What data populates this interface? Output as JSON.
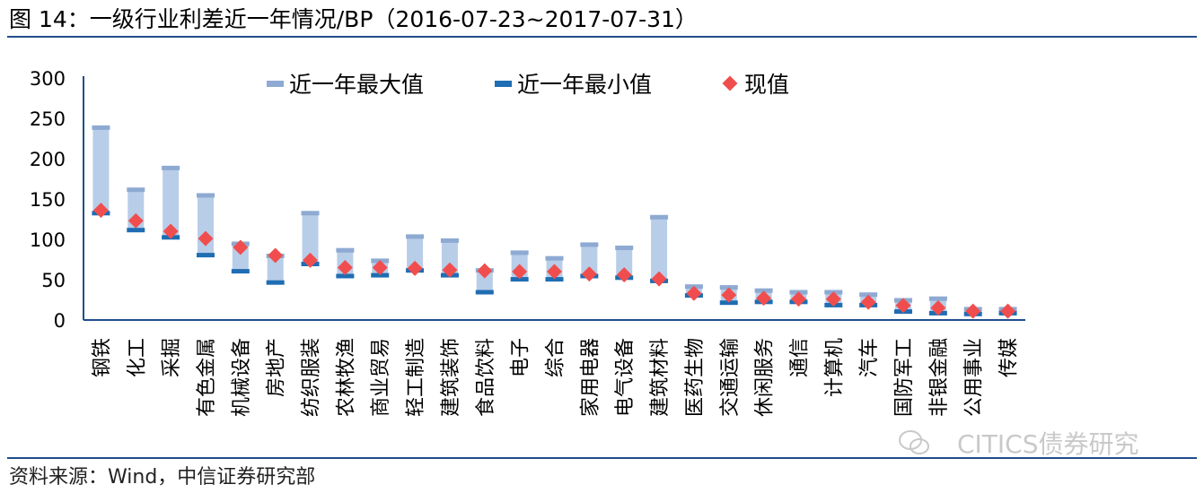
{
  "title": "图 14：一级行业利差近一年情况/BP（2016-07-23~2017-07-31）",
  "source": "资料来源：Wind，中信证券研究部",
  "watermark": "CITICS债券研究",
  "colors": {
    "range_fill": "#b8cde8",
    "max_marker": "#8eaad2",
    "min_marker": "#1f6db3",
    "current_marker": "#f04e4e",
    "axis": "#1f4e8c",
    "rule": "#1f4e8c"
  },
  "chart_data": {
    "type": "bar",
    "title": "",
    "xlabel": "",
    "ylabel": "",
    "ylim": [
      0,
      300
    ],
    "yticks": [
      0,
      50,
      100,
      150,
      200,
      250,
      300
    ],
    "grid": false,
    "legend_position": "top",
    "categories": [
      "钢铁",
      "化工",
      "采掘",
      "有色金属",
      "机械设备",
      "房地产",
      "纺织服装",
      "农林牧渔",
      "商业贸易",
      "轻工制造",
      "建筑装饰",
      "食品饮料",
      "电子",
      "综合",
      "家用电器",
      "电气设备",
      "建筑材料",
      "医药生物",
      "交通运输",
      "休闲服务",
      "通信",
      "计算机",
      "汽车",
      "国防军工",
      "非银金融",
      "公用事业",
      "传媒"
    ],
    "series": [
      {
        "name": "近一年最大值",
        "values": [
          239,
          162,
          189,
          155,
          95,
          80,
          133,
          87,
          74,
          104,
          99,
          62,
          84,
          77,
          94,
          90,
          128,
          42,
          41,
          37,
          35,
          35,
          32,
          25,
          27,
          14,
          14
        ]
      },
      {
        "name": "近一年最小值",
        "values": [
          133,
          112,
          103,
          81,
          61,
          47,
          70,
          55,
          56,
          62,
          56,
          35,
          51,
          51,
          55,
          53,
          49,
          31,
          22,
          23,
          23,
          19,
          19,
          11,
          9,
          8,
          9
        ]
      },
      {
        "name": "现值",
        "values": [
          136,
          123,
          110,
          101,
          90,
          80,
          74,
          65,
          65,
          64,
          62,
          61,
          60,
          60,
          57,
          56,
          51,
          33,
          31,
          27,
          26,
          26,
          22,
          18,
          15,
          11,
          11
        ]
      }
    ]
  }
}
